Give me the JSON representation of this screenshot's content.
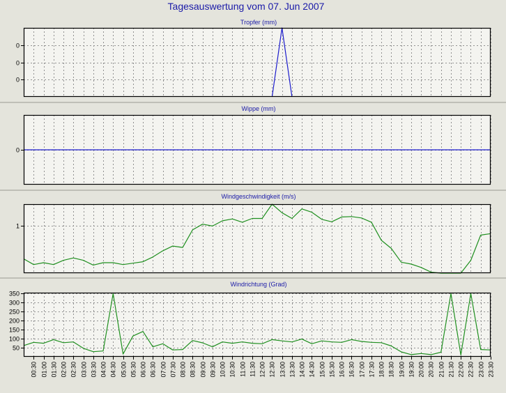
{
  "title": "Tagesauswertung vom 07. Jun 2007",
  "colors": {
    "background": "#e4e4dc",
    "plot_background": "#f4f4f0",
    "grid": "#909090",
    "rain_series": "#1c1ccc",
    "wind_series": "#1f8f1f",
    "title_text": "#1a1aa8"
  },
  "x_tick_labels": [
    "00:30",
    "01:00",
    "01:30",
    "02:00",
    "02:30",
    "03:00",
    "03:30",
    "04:00",
    "04:30",
    "05:00",
    "05:30",
    "06:00",
    "06:30",
    "07:00",
    "07:30",
    "08:00",
    "08:30",
    "09:00",
    "09:30",
    "10:00",
    "10:30",
    "11:00",
    "11:30",
    "12:00",
    "12:30",
    "13:00",
    "13:30",
    "14:00",
    "14:30",
    "15:00",
    "15:30",
    "16:00",
    "16:30",
    "17:00",
    "17:30",
    "18:00",
    "18:30",
    "19:00",
    "19:30",
    "20:00",
    "20:30",
    "21:00",
    "21:30",
    "22:00",
    "22:30",
    "23:00",
    "23:30"
  ],
  "chart_data": [
    {
      "type": "line",
      "title": "Tropfer (mm)",
      "x_range": [
        "00:00",
        "23:30"
      ],
      "ylim": [
        0,
        0.4
      ],
      "y_ticks": [
        0.1,
        0.2,
        0.3
      ],
      "y_tick_labels": [
        "0",
        "0",
        "0"
      ],
      "grid": true,
      "series": [
        {
          "x": [
            "12:30",
            "13:00",
            "13:30"
          ],
          "y": [
            0,
            0.4,
            0
          ],
          "color": "rain_series"
        }
      ]
    },
    {
      "type": "line",
      "title": "Wippe (mm)",
      "x_range": [
        "00:00",
        "23:30"
      ],
      "ylim": [
        -1,
        1
      ],
      "y_ticks": [
        0
      ],
      "y_tick_labels": [
        "0"
      ],
      "grid": true,
      "series": [
        {
          "x": [
            "00:00",
            "23:30"
          ],
          "y": [
            0,
            0
          ],
          "color": "rain_series"
        }
      ]
    },
    {
      "type": "line",
      "title": "Windgeschwindigkeit (m/s)",
      "x_range": [
        "00:00",
        "23:30"
      ],
      "ylim": [
        0,
        1.45
      ],
      "y_ticks": [
        1
      ],
      "y_tick_labels": [
        "1"
      ],
      "grid": true,
      "series": [
        {
          "x": [
            "00:00",
            "00:30",
            "01:00",
            "01:30",
            "02:00",
            "02:30",
            "03:00",
            "03:30",
            "04:00",
            "04:30",
            "05:00",
            "05:30",
            "06:00",
            "06:30",
            "07:00",
            "07:30",
            "08:00",
            "08:30",
            "09:00",
            "09:30",
            "10:00",
            "10:30",
            "11:00",
            "11:30",
            "12:00",
            "12:30",
            "13:00",
            "13:30",
            "14:00",
            "14:30",
            "15:00",
            "15:30",
            "16:00",
            "16:30",
            "17:00",
            "17:30",
            "18:00",
            "18:30",
            "19:00",
            "19:30",
            "20:00",
            "20:30",
            "21:00",
            "21:30",
            "22:00",
            "22:30",
            "23:00",
            "23:30"
          ],
          "y": [
            0.3,
            0.18,
            0.22,
            0.18,
            0.27,
            0.32,
            0.27,
            0.17,
            0.22,
            0.22,
            0.18,
            0.21,
            0.24,
            0.34,
            0.47,
            0.57,
            0.54,
            0.91,
            1.03,
            0.99,
            1.1,
            1.14,
            1.07,
            1.15,
            1.15,
            1.45,
            1.27,
            1.15,
            1.35,
            1.28,
            1.13,
            1.08,
            1.18,
            1.19,
            1.16,
            1.07,
            0.69,
            0.52,
            0.23,
            0.19,
            0.12,
            0.02,
            0,
            0,
            0,
            0.27,
            0.8,
            0.83
          ],
          "color": "wind_series"
        }
      ]
    },
    {
      "type": "line",
      "title": "Windrichtung (Grad)",
      "x_range": [
        "00:00",
        "23:30"
      ],
      "ylim": [
        0,
        355
      ],
      "y_ticks": [
        50,
        100,
        150,
        200,
        250,
        300,
        350
      ],
      "y_tick_labels": [
        "50",
        "100",
        "150",
        "200",
        "250",
        "300",
        "350"
      ],
      "grid": true,
      "series": [
        {
          "x": [
            "00:00",
            "00:30",
            "01:00",
            "01:30",
            "02:00",
            "02:30",
            "03:00",
            "03:30",
            "04:00",
            "04:30",
            "05:00",
            "05:30",
            "06:00",
            "06:30",
            "07:00",
            "07:30",
            "08:00",
            "08:30",
            "09:00",
            "09:30",
            "10:00",
            "10:30",
            "11:00",
            "11:30",
            "12:00",
            "12:30",
            "13:00",
            "13:30",
            "14:00",
            "14:30",
            "15:00",
            "15:30",
            "16:00",
            "16:30",
            "17:00",
            "17:30",
            "18:00",
            "18:30",
            "19:00",
            "19:30",
            "20:00",
            "20:30",
            "21:00",
            "21:30",
            "22:00",
            "22:30",
            "23:00",
            "23:30"
          ],
          "y": [
            62,
            80,
            75,
            95,
            78,
            82,
            47,
            28,
            32,
            350,
            15,
            115,
            140,
            55,
            72,
            38,
            40,
            90,
            77,
            55,
            82,
            75,
            82,
            75,
            72,
            95,
            88,
            82,
            98,
            72,
            88,
            82,
            80,
            95,
            85,
            80,
            78,
            60,
            27,
            12,
            18,
            12,
            25,
            350,
            10,
            350,
            40,
            38
          ],
          "color": "wind_series"
        }
      ]
    }
  ]
}
